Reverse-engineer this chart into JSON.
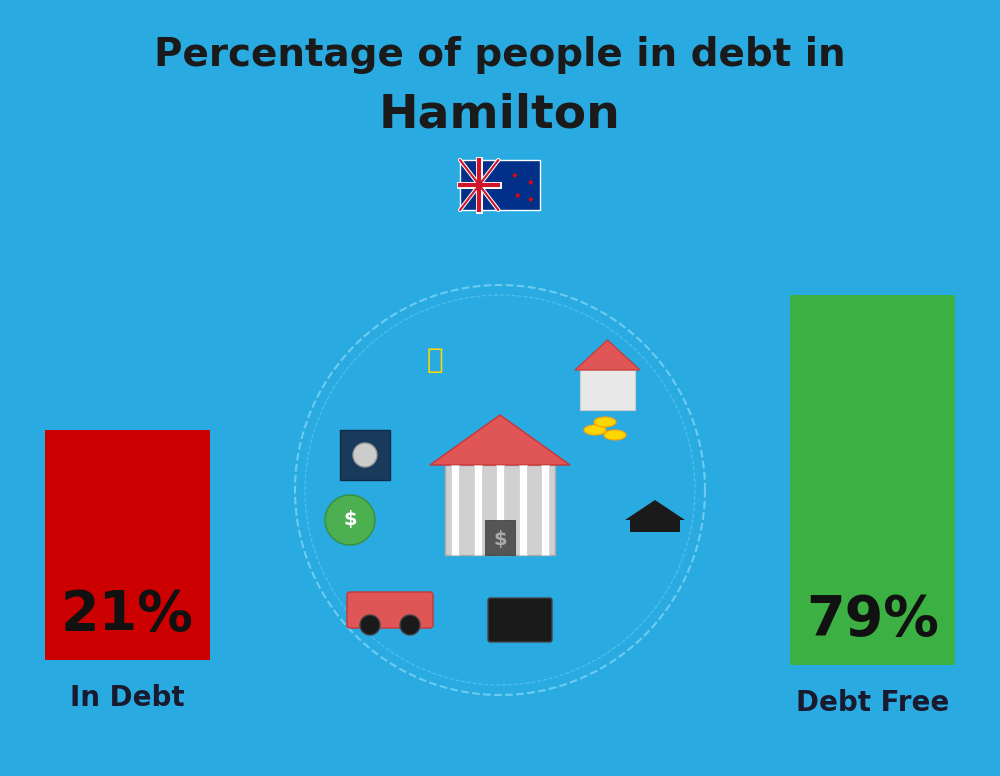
{
  "title_line1": "Percentage of people in debt in",
  "title_line2": "Hamilton",
  "background_color": "#29ABE2",
  "bar1_label": "In Debt",
  "bar1_color": "#CC0000",
  "bar1_pct_text": "21%",
  "bar2_label": "Debt Free",
  "bar2_color": "#3CB043",
  "bar2_pct_text": "79%",
  "title_color": "#1a1a1a",
  "label_color": "#1a1a2e",
  "pct_color": "#111111",
  "title_fontsize": 28,
  "subtitle_fontsize": 34,
  "pct_fontsize": 40,
  "label_fontsize": 20,
  "fig_width": 10.0,
  "fig_height": 7.76
}
